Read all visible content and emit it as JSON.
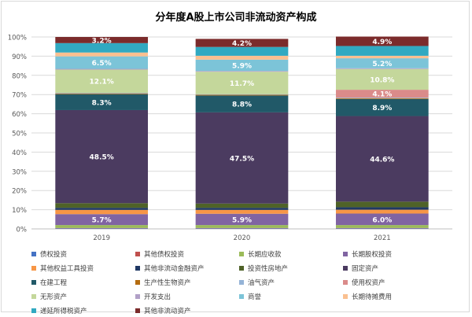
{
  "chart_data": {
    "type": "bar",
    "stacked": true,
    "percent": true,
    "title": "分年度A股上市公司非流动资产构成",
    "categories": [
      "2019",
      "2020",
      "2021"
    ],
    "ylim": [
      0,
      100
    ],
    "yticks": [
      "0%",
      "10%",
      "20%",
      "30%",
      "40%",
      "50%",
      "60%",
      "70%",
      "80%",
      "90%",
      "100%"
    ],
    "grid": true,
    "legend_position": "bottom",
    "series": [
      {
        "name": "债权投资",
        "color": "#4472C4",
        "values": [
          0.3,
          0.3,
          0.3
        ],
        "labels": [
          "",
          "",
          ""
        ]
      },
      {
        "name": "其他债权投资",
        "color": "#C0504D",
        "values": [
          0.2,
          0.2,
          0.2
        ],
        "labels": [
          "",
          "",
          ""
        ]
      },
      {
        "name": "长期应收款",
        "color": "#9BBB59",
        "values": [
          1.5,
          1.5,
          1.5
        ],
        "labels": [
          "",
          "",
          ""
        ]
      },
      {
        "name": "长期股权投资",
        "color": "#8064A2",
        "values": [
          5.7,
          5.9,
          6.0
        ],
        "labels": [
          "5.7%",
          "5.9%",
          "6.0%"
        ]
      },
      {
        "name": "其他权益工具投资",
        "color": "#F79646",
        "values": [
          2.2,
          2.0,
          2.0
        ],
        "labels": [
          "",
          "",
          ""
        ]
      },
      {
        "name": "其他非流动金融资产",
        "color": "#1F3864",
        "values": [
          1.1,
          1.1,
          1.3
        ],
        "labels": [
          "",
          "",
          ""
        ]
      },
      {
        "name": "投资性房地产",
        "color": "#4F6228",
        "values": [
          2.4,
          2.2,
          2.9
        ],
        "labels": [
          "",
          "",
          ""
        ]
      },
      {
        "name": "固定资产",
        "color": "#4B3B60",
        "values": [
          48.5,
          47.5,
          44.6
        ],
        "labels": [
          "48.5%",
          "47.5%",
          "44.6%"
        ]
      },
      {
        "name": "在建工程",
        "color": "#215968",
        "values": [
          8.3,
          8.8,
          8.9
        ],
        "labels": [
          "8.3%",
          "8.8%",
          "8.9%"
        ]
      },
      {
        "name": "生产性生物资产",
        "color": "#B46C10",
        "values": [
          0.4,
          0.4,
          0.4
        ],
        "labels": [
          "",
          "",
          ""
        ]
      },
      {
        "name": "油气资产",
        "color": "#95B3D7",
        "values": [
          0.3,
          0.3,
          0.3
        ],
        "labels": [
          "",
          "",
          ""
        ]
      },
      {
        "name": "使用权资产",
        "color": "#DA8B8A",
        "values": [
          0.0,
          0.0,
          4.1
        ],
        "labels": [
          "",
          "",
          "4.1%"
        ]
      },
      {
        "name": "无形资产",
        "color": "#C4D79B",
        "values": [
          12.1,
          11.7,
          10.8
        ],
        "labels": [
          "12.1%",
          "11.7%",
          "10.8%"
        ]
      },
      {
        "name": "开发支出",
        "color": "#B1A0C7",
        "values": [
          0.4,
          0.4,
          0.4
        ],
        "labels": [
          "",
          "",
          ""
        ]
      },
      {
        "name": "商誉",
        "color": "#7CC4D8",
        "values": [
          6.5,
          5.9,
          5.2
        ],
        "labels": [
          "6.5%",
          "5.9%",
          "5.2%"
        ]
      },
      {
        "name": "长期待摊费用",
        "color": "#FAC090",
        "values": [
          2.0,
          2.0,
          1.3
        ],
        "labels": [
          "",
          "",
          ""
        ]
      },
      {
        "name": "递延所得税资产",
        "color": "#31A9C1",
        "values": [
          4.9,
          4.6,
          5.1
        ],
        "labels": [
          "",
          "",
          ""
        ]
      },
      {
        "name": "其他非流动资产",
        "color": "#7B2B2B",
        "values": [
          3.2,
          4.2,
          4.9
        ],
        "labels": [
          "3.2%",
          "4.2%",
          "4.9%"
        ]
      }
    ]
  }
}
